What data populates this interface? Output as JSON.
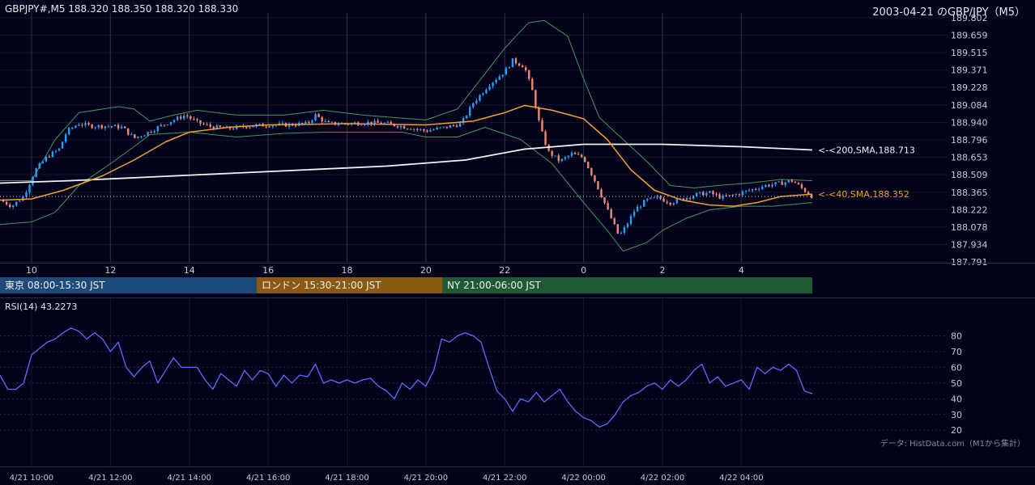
{
  "header": {
    "symbol_line": "GBPJPY#,M5 188.320 188.350 188.320 188.330",
    "title": "2003-04-21 のGBP/JPY（M5）"
  },
  "sessions": [
    {
      "label": "東京 08:00-15:30 JST",
      "color": "#1e4a7a"
    },
    {
      "label": "ロンドン 15:30-21:00 JST",
      "color": "#8a5a12"
    },
    {
      "label": "NY 21:00-06:00 JST",
      "color": "#1e5a36"
    }
  ],
  "rsi_panel": {
    "title": "RSI(14) 43.2273"
  },
  "credit": "データ: HistData.com（M1から集計）",
  "colors": {
    "background": "#02031a",
    "bull": "#2a9df4",
    "bear": "#f08878",
    "sma40": "#f0a030",
    "sma200": "#f2f2f2",
    "bollinger": "#3f9a5a",
    "rsi": "#5b6cff"
  },
  "chart_data": [
    {
      "type": "candlestick",
      "ylim": [
        187.791,
        189.802
      ],
      "y_ticks": [
        "189.802",
        "189.659",
        "189.515",
        "189.371",
        "189.228",
        "189.084",
        "188.940",
        "188.796",
        "188.653",
        "188.509",
        "188.365",
        "188.222",
        "188.078",
        "187.934",
        "187.791"
      ],
      "x_ticks": [
        "10",
        "12",
        "14",
        "16",
        "18",
        "20",
        "22",
        "0",
        "2",
        "4"
      ],
      "x_tick_hours": [
        10,
        12,
        14,
        16,
        18,
        20,
        22,
        24,
        26,
        28
      ],
      "x_range_hours": [
        9.2,
        29.8
      ],
      "current_price": 188.33,
      "labels": [
        {
          "text": "<-<200,SMA,188.713",
          "value": 188.713,
          "color": "#f2f2f2"
        },
        {
          "text": "<-<40,SMA,188.352",
          "value": 188.352,
          "color": "#f0a030"
        }
      ],
      "price_path": [
        [
          9.2,
          188.3
        ],
        [
          9.5,
          188.25
        ],
        [
          9.8,
          188.33
        ],
        [
          10.1,
          188.55
        ],
        [
          10.4,
          188.66
        ],
        [
          10.7,
          188.72
        ],
        [
          10.9,
          188.87
        ],
        [
          11.2,
          188.93
        ],
        [
          11.5,
          188.91
        ],
        [
          12.0,
          188.91
        ],
        [
          12.3,
          188.9
        ],
        [
          12.6,
          188.81
        ],
        [
          12.9,
          188.85
        ],
        [
          13.2,
          188.9
        ],
        [
          13.6,
          188.96
        ],
        [
          13.9,
          189.0
        ],
        [
          14.2,
          188.94
        ],
        [
          14.6,
          188.9
        ],
        [
          15.0,
          188.89
        ],
        [
          15.5,
          188.91
        ],
        [
          16.0,
          188.92
        ],
        [
          16.5,
          188.92
        ],
        [
          17.0,
          188.93
        ],
        [
          17.2,
          189.0
        ],
        [
          17.5,
          188.93
        ],
        [
          18.0,
          188.93
        ],
        [
          18.5,
          188.94
        ],
        [
          19.0,
          188.93
        ],
        [
          19.5,
          188.9
        ],
        [
          20.0,
          188.87
        ],
        [
          20.5,
          188.9
        ],
        [
          20.9,
          188.93
        ],
        [
          21.2,
          189.1
        ],
        [
          21.6,
          189.25
        ],
        [
          22.0,
          189.36
        ],
        [
          22.2,
          189.45
        ],
        [
          22.5,
          189.4
        ],
        [
          22.7,
          189.2
        ],
        [
          22.9,
          188.9
        ],
        [
          23.1,
          188.7
        ],
        [
          23.4,
          188.62
        ],
        [
          23.7,
          188.68
        ],
        [
          24.0,
          188.65
        ],
        [
          24.3,
          188.45
        ],
        [
          24.5,
          188.3
        ],
        [
          24.7,
          188.15
        ],
        [
          24.9,
          188.0
        ],
        [
          25.1,
          188.1
        ],
        [
          25.3,
          188.22
        ],
        [
          25.6,
          188.3
        ],
        [
          25.9,
          188.32
        ],
        [
          26.2,
          188.28
        ],
        [
          26.6,
          188.32
        ],
        [
          26.9,
          188.35
        ],
        [
          27.2,
          188.36
        ],
        [
          27.5,
          188.32
        ],
        [
          27.8,
          188.34
        ],
        [
          28.2,
          188.38
        ],
        [
          28.6,
          188.42
        ],
        [
          29.0,
          188.44
        ],
        [
          29.3,
          188.46
        ],
        [
          29.6,
          188.38
        ],
        [
          29.8,
          188.33
        ]
      ],
      "sma40_path": [
        [
          9.2,
          188.3
        ],
        [
          10.0,
          188.31
        ],
        [
          10.8,
          188.38
        ],
        [
          11.8,
          188.5
        ],
        [
          12.6,
          188.63
        ],
        [
          13.4,
          188.78
        ],
        [
          14.0,
          188.86
        ],
        [
          15.0,
          188.9
        ],
        [
          16.0,
          188.92
        ],
        [
          18.0,
          188.93
        ],
        [
          20.0,
          188.92
        ],
        [
          21.2,
          188.95
        ],
        [
          22.0,
          189.02
        ],
        [
          22.5,
          189.08
        ],
        [
          23.2,
          189.04
        ],
        [
          24.0,
          188.97
        ],
        [
          24.6,
          188.8
        ],
        [
          25.2,
          188.55
        ],
        [
          25.8,
          188.38
        ],
        [
          26.5,
          188.3
        ],
        [
          27.2,
          188.26
        ],
        [
          27.8,
          188.25
        ],
        [
          28.4,
          188.28
        ],
        [
          29.0,
          188.33
        ],
        [
          29.8,
          188.35
        ]
      ],
      "sma200_path": [
        [
          9.2,
          188.44
        ],
        [
          11.0,
          188.46
        ],
        [
          13.0,
          188.49
        ],
        [
          15.0,
          188.52
        ],
        [
          17.0,
          188.55
        ],
        [
          19.0,
          188.58
        ],
        [
          21.0,
          188.63
        ],
        [
          22.5,
          188.72
        ],
        [
          24.0,
          188.76
        ],
        [
          26.0,
          188.76
        ],
        [
          28.0,
          188.74
        ],
        [
          29.8,
          188.713
        ]
      ],
      "bb_upper_path": [
        [
          9.2,
          188.46
        ],
        [
          10.0,
          188.46
        ],
        [
          10.6,
          188.8
        ],
        [
          11.2,
          189.02
        ],
        [
          12.2,
          189.07
        ],
        [
          12.6,
          189.05
        ],
        [
          13.0,
          188.95
        ],
        [
          13.6,
          189.0
        ],
        [
          14.2,
          189.04
        ],
        [
          15.2,
          189.0
        ],
        [
          16.4,
          189.0
        ],
        [
          17.4,
          189.04
        ],
        [
          18.4,
          189.0
        ],
        [
          19.2,
          188.98
        ],
        [
          20.0,
          188.96
        ],
        [
          20.8,
          189.05
        ],
        [
          21.4,
          189.3
        ],
        [
          22.0,
          189.55
        ],
        [
          22.6,
          189.76
        ],
        [
          23.0,
          189.78
        ],
        [
          23.6,
          189.65
        ],
        [
          24.0,
          189.3
        ],
        [
          24.4,
          188.98
        ],
        [
          25.0,
          188.8
        ],
        [
          25.6,
          188.62
        ],
        [
          26.2,
          188.42
        ],
        [
          26.8,
          188.4
        ],
        [
          27.4,
          188.42
        ],
        [
          28.2,
          188.44
        ],
        [
          29.0,
          188.47
        ],
        [
          29.8,
          188.46
        ]
      ],
      "bb_lower_path": [
        [
          9.2,
          188.1
        ],
        [
          10.0,
          188.12
        ],
        [
          10.6,
          188.2
        ],
        [
          11.2,
          188.42
        ],
        [
          12.0,
          188.6
        ],
        [
          12.6,
          188.74
        ],
        [
          13.0,
          188.84
        ],
        [
          14.0,
          188.86
        ],
        [
          15.2,
          188.82
        ],
        [
          16.4,
          188.85
        ],
        [
          17.4,
          188.86
        ],
        [
          18.4,
          188.86
        ],
        [
          19.4,
          188.86
        ],
        [
          20.0,
          188.82
        ],
        [
          20.8,
          188.82
        ],
        [
          21.5,
          188.9
        ],
        [
          22.4,
          188.8
        ],
        [
          23.2,
          188.6
        ],
        [
          24.0,
          188.28
        ],
        [
          24.6,
          188.05
        ],
        [
          25.0,
          187.88
        ],
        [
          25.6,
          187.95
        ],
        [
          26.0,
          188.05
        ],
        [
          26.6,
          188.15
        ],
        [
          27.2,
          188.22
        ],
        [
          28.0,
          188.25
        ],
        [
          28.8,
          188.25
        ],
        [
          29.8,
          188.28
        ]
      ]
    },
    {
      "type": "line",
      "title": "RSI(14) 43.2273",
      "ylim": [
        16,
        89
      ],
      "y_ticks": [
        80,
        70,
        60,
        50,
        40,
        30,
        20
      ],
      "x_ticks": [
        "4/21 10:00",
        "4/21 12:00",
        "4/21 14:00",
        "4/21 16:00",
        "4/21 18:00",
        "4/21 20:00",
        "4/21 22:00",
        "4/22 00:00",
        "4/22 02:00",
        "4/22 04:00"
      ],
      "x_tick_hours": [
        10,
        12,
        14,
        16,
        18,
        20,
        22,
        24,
        26,
        28
      ],
      "x_range_hours": [
        9.2,
        29.8
      ],
      "rsi_path": [
        [
          9.2,
          55
        ],
        [
          9.4,
          46
        ],
        [
          9.6,
          46
        ],
        [
          9.8,
          50
        ],
        [
          10.0,
          68
        ],
        [
          10.2,
          72
        ],
        [
          10.4,
          76
        ],
        [
          10.6,
          78
        ],
        [
          10.8,
          82
        ],
        [
          11.0,
          85
        ],
        [
          11.2,
          83
        ],
        [
          11.4,
          78
        ],
        [
          11.6,
          82
        ],
        [
          11.8,
          78
        ],
        [
          12.0,
          70
        ],
        [
          12.2,
          76
        ],
        [
          12.4,
          60
        ],
        [
          12.6,
          54
        ],
        [
          12.8,
          60
        ],
        [
          13.0,
          64
        ],
        [
          13.2,
          50
        ],
        [
          13.4,
          58
        ],
        [
          13.6,
          66
        ],
        [
          13.8,
          60
        ],
        [
          14.0,
          60
        ],
        [
          14.2,
          60
        ],
        [
          14.4,
          52
        ],
        [
          14.6,
          46
        ],
        [
          14.8,
          56
        ],
        [
          15.0,
          52
        ],
        [
          15.2,
          48
        ],
        [
          15.4,
          58
        ],
        [
          15.6,
          52
        ],
        [
          15.8,
          58
        ],
        [
          16.0,
          56
        ],
        [
          16.2,
          48
        ],
        [
          16.4,
          55
        ],
        [
          16.6,
          50
        ],
        [
          16.8,
          55
        ],
        [
          17.0,
          54
        ],
        [
          17.2,
          62
        ],
        [
          17.4,
          50
        ],
        [
          17.6,
          52
        ],
        [
          17.8,
          50
        ],
        [
          18.0,
          52
        ],
        [
          18.2,
          50
        ],
        [
          18.4,
          52
        ],
        [
          18.6,
          53
        ],
        [
          18.8,
          48
        ],
        [
          19.0,
          45
        ],
        [
          19.2,
          40
        ],
        [
          19.4,
          50
        ],
        [
          19.6,
          46
        ],
        [
          19.8,
          52
        ],
        [
          20.0,
          48
        ],
        [
          20.2,
          58
        ],
        [
          20.4,
          78
        ],
        [
          20.6,
          76
        ],
        [
          20.8,
          80
        ],
        [
          21.0,
          82
        ],
        [
          21.2,
          80
        ],
        [
          21.4,
          76
        ],
        [
          21.6,
          60
        ],
        [
          21.8,
          45
        ],
        [
          22.0,
          40
        ],
        [
          22.2,
          32
        ],
        [
          22.4,
          40
        ],
        [
          22.6,
          38
        ],
        [
          22.8,
          44
        ],
        [
          23.0,
          38
        ],
        [
          23.2,
          42
        ],
        [
          23.4,
          46
        ],
        [
          23.6,
          38
        ],
        [
          23.8,
          32
        ],
        [
          24.0,
          28
        ],
        [
          24.2,
          26
        ],
        [
          24.4,
          22
        ],
        [
          24.6,
          24
        ],
        [
          24.8,
          30
        ],
        [
          25.0,
          38
        ],
        [
          25.2,
          42
        ],
        [
          25.4,
          44
        ],
        [
          25.6,
          48
        ],
        [
          25.8,
          50
        ],
        [
          26.0,
          46
        ],
        [
          26.2,
          52
        ],
        [
          26.4,
          48
        ],
        [
          26.6,
          52
        ],
        [
          26.8,
          58
        ],
        [
          27.0,
          62
        ],
        [
          27.2,
          50
        ],
        [
          27.4,
          54
        ],
        [
          27.6,
          48
        ],
        [
          27.8,
          50
        ],
        [
          28.0,
          52
        ],
        [
          28.2,
          46
        ],
        [
          28.4,
          60
        ],
        [
          28.6,
          56
        ],
        [
          28.8,
          60
        ],
        [
          29.0,
          58
        ],
        [
          29.2,
          62
        ],
        [
          29.4,
          58
        ],
        [
          29.6,
          45
        ],
        [
          29.8,
          43.2
        ]
      ]
    }
  ]
}
